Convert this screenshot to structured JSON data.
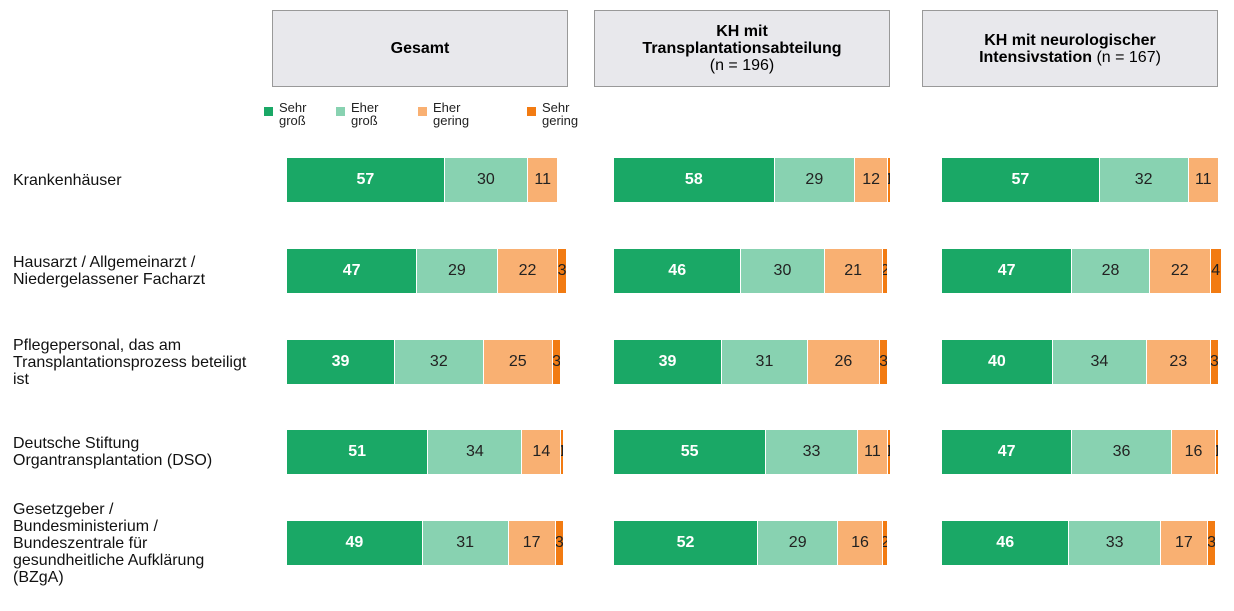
{
  "chart_data": [
    {
      "type": "stacked-bar",
      "title": "Gesamt",
      "categories": [
        "Krankenhäuser",
        "Hausarzt / Allgemeinarzt / Niedergelassener Facharzt",
        "Pflegepersonal, das am Transplantationsprozess beteiligt ist",
        "Deutsche Stiftung Organtransplantation (DSO)",
        "Gesetzgeber / Bundesministerium / Bundeszentrale für gesundheitliche Aufklärung (BZgA)"
      ],
      "series": [
        {
          "name": "Sehr groß",
          "color": "#1aa866",
          "values": [
            57,
            47,
            39,
            51,
            49
          ]
        },
        {
          "name": "Eher groß",
          "color": "#88d2b1",
          "values": [
            30,
            29,
            32,
            34,
            31
          ]
        },
        {
          "name": "Eher gering",
          "color": "#f9b072",
          "values": [
            11,
            22,
            25,
            14,
            17
          ]
        },
        {
          "name": "Sehr gering",
          "color": "#f27b12",
          "values": [
            null,
            3,
            3,
            1,
            3
          ]
        }
      ]
    },
    {
      "type": "stacked-bar",
      "title": "KH mit Transplantationsabteilung",
      "subtitle": "(n = 196)",
      "series": [
        {
          "color": "#1aa866",
          "values": [
            58,
            46,
            39,
            55,
            52
          ]
        },
        {
          "color": "#88d2b1",
          "values": [
            29,
            30,
            31,
            33,
            29
          ]
        },
        {
          "color": "#f9b072",
          "values": [
            12,
            21,
            26,
            11,
            16
          ]
        },
        {
          "color": "#f27b12",
          "values": [
            1,
            2,
            3,
            1,
            2
          ]
        }
      ]
    },
    {
      "type": "stacked-bar",
      "title": "KH mit neurologischer Intensivstation",
      "subtitle": "(n = 167)",
      "series": [
        {
          "color": "#1aa866",
          "values": [
            57,
            47,
            40,
            47,
            46
          ]
        },
        {
          "color": "#88d2b1",
          "values": [
            32,
            28,
            34,
            36,
            33
          ]
        },
        {
          "color": "#f9b072",
          "values": [
            11,
            22,
            23,
            16,
            17
          ]
        },
        {
          "color": "#f27b12",
          "values": [
            null,
            4,
            3,
            1,
            3
          ]
        }
      ]
    }
  ]
}
